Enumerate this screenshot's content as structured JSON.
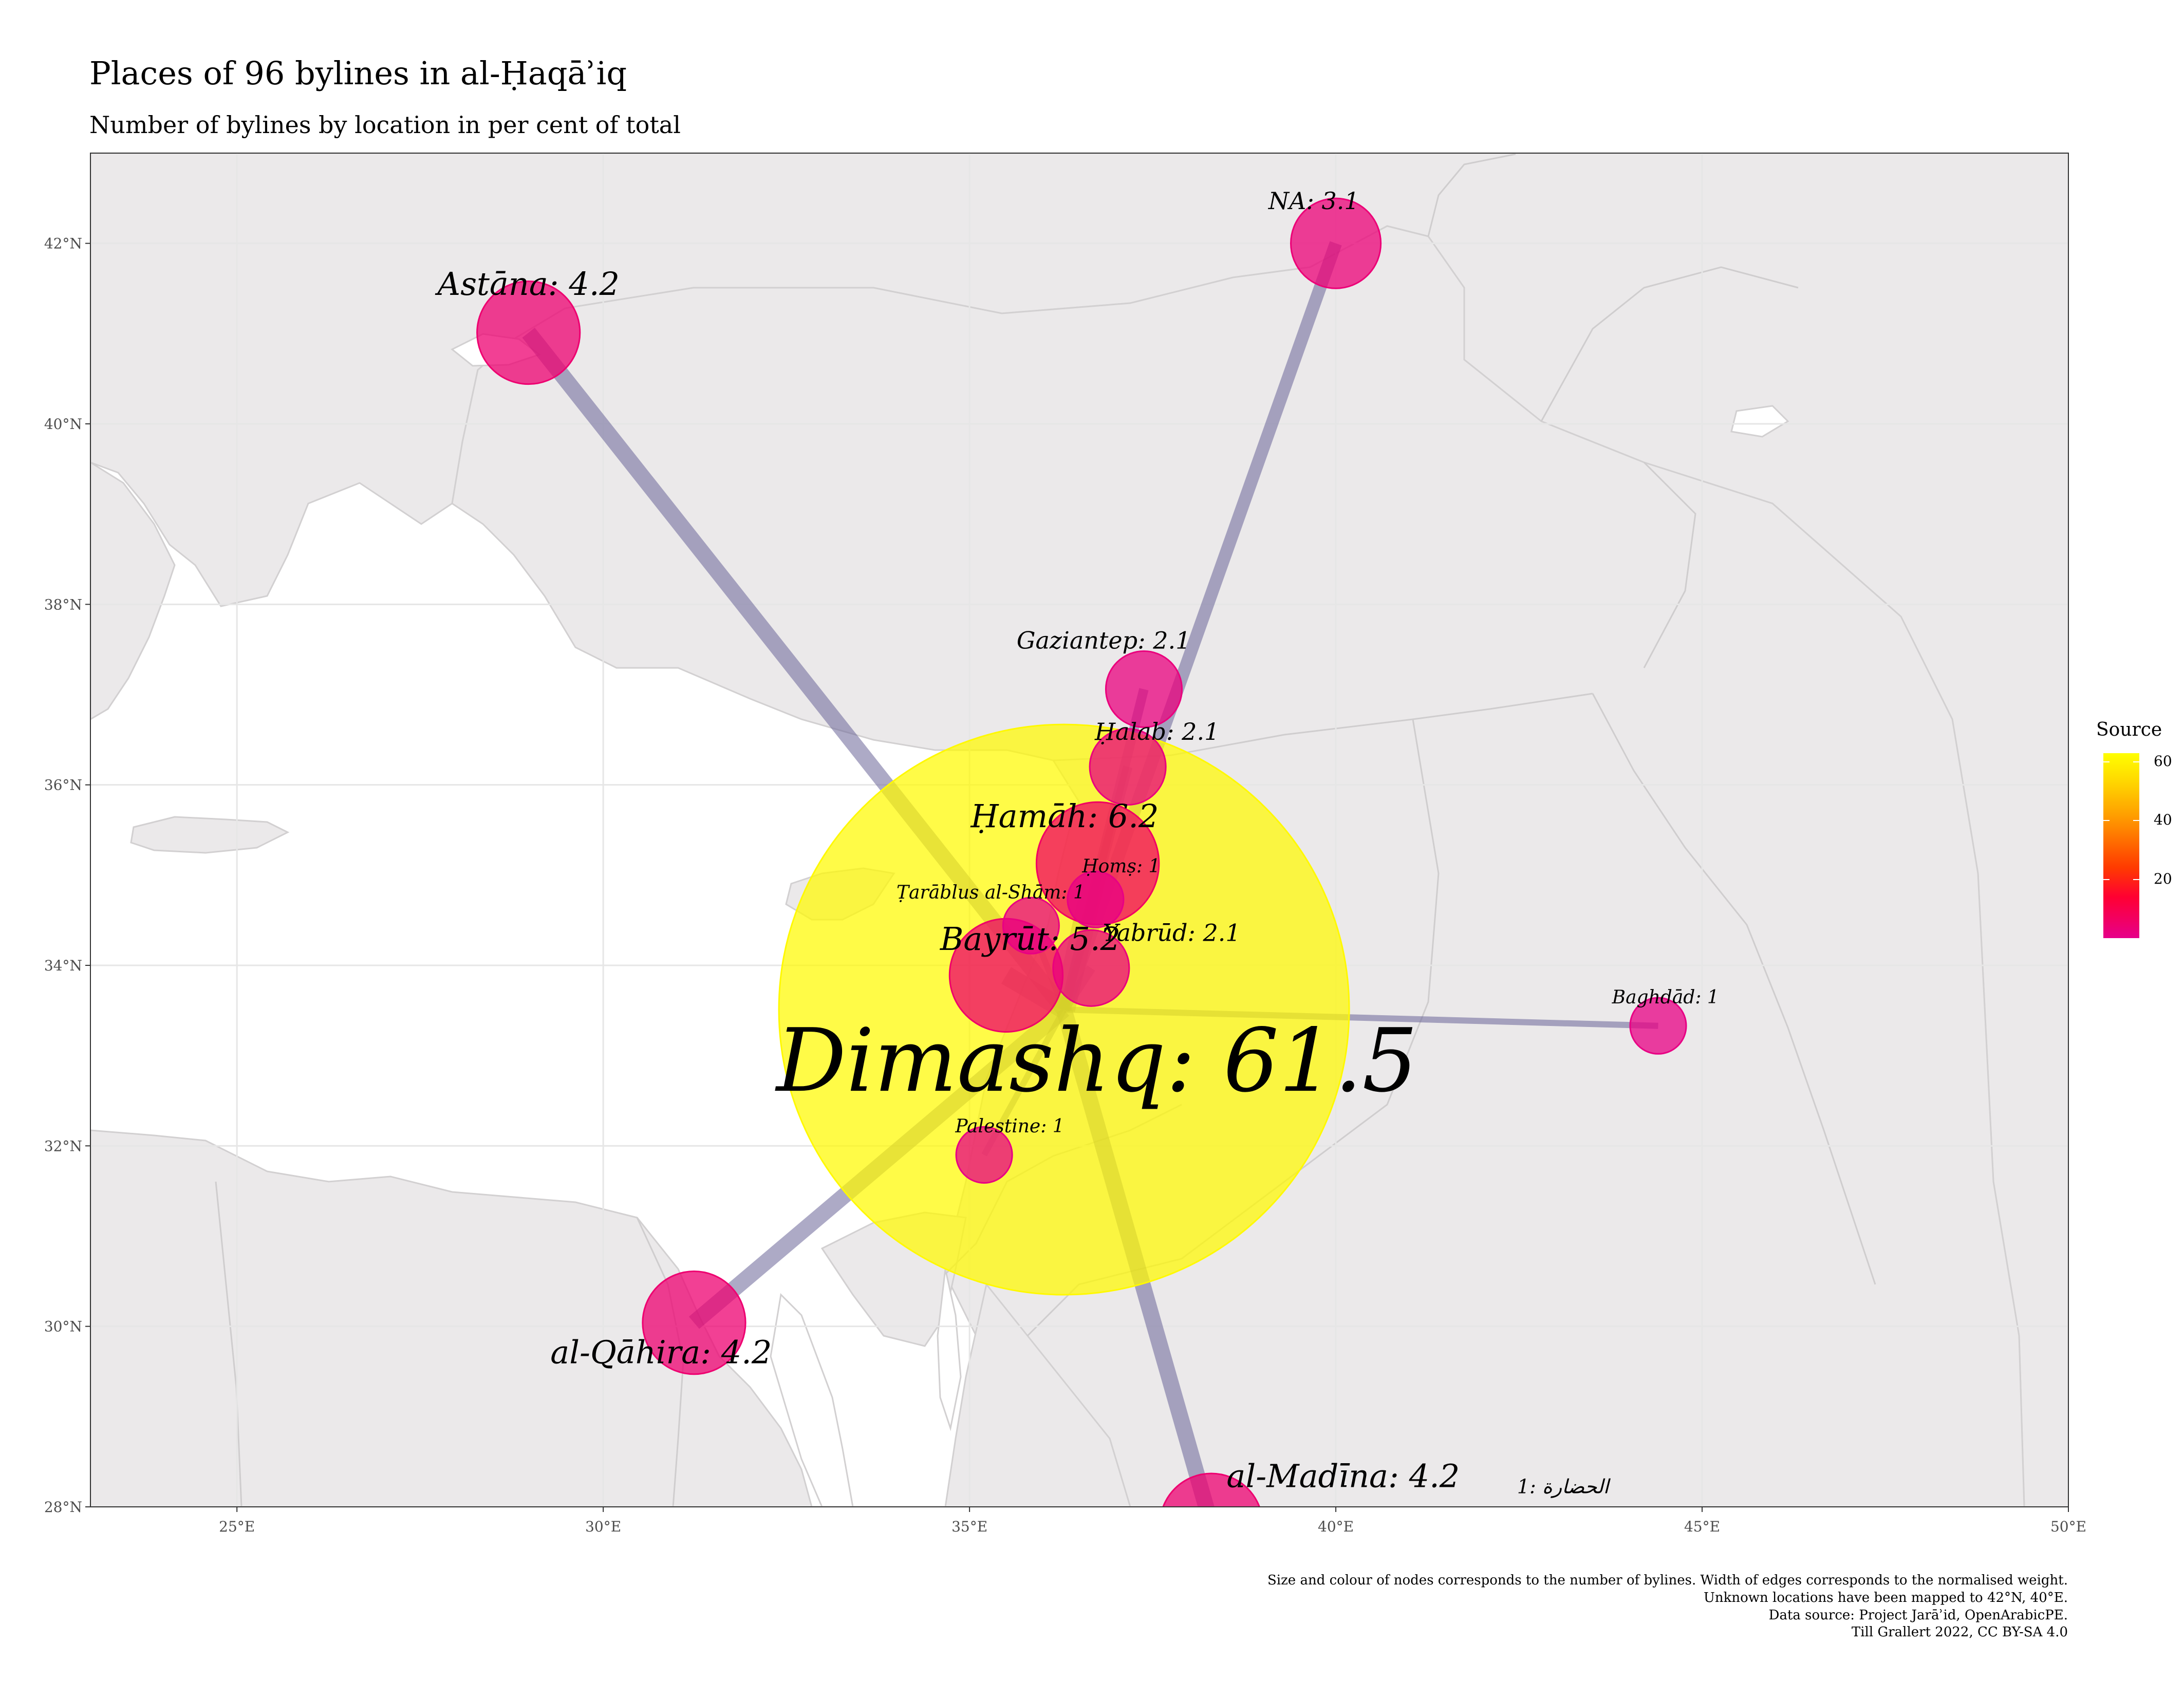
{
  "title": "Places of 96 bylines in al-Ḥaqāʾiq",
  "subtitle": "Number of bylines by location in per cent of total",
  "axes": {
    "x_ticks": [
      {
        "value": 25,
        "label": "25°E"
      },
      {
        "value": 30,
        "label": "30°E"
      },
      {
        "value": 35,
        "label": "35°E"
      },
      {
        "value": 40,
        "label": "40°E"
      },
      {
        "value": 45,
        "label": "45°E"
      },
      {
        "value": 50,
        "label": "50°E"
      }
    ],
    "y_ticks": [
      {
        "value": 28,
        "label": "28°N"
      },
      {
        "value": 30,
        "label": "30°N"
      },
      {
        "value": 32,
        "label": "32°N"
      },
      {
        "value": 34,
        "label": "34°N"
      },
      {
        "value": 36,
        "label": "36°N"
      },
      {
        "value": 38,
        "label": "38°N"
      },
      {
        "value": 40,
        "label": "40°N"
      },
      {
        "value": 42,
        "label": "42°N"
      }
    ],
    "lon_range": [
      23,
      50
    ],
    "lat_range": [
      28,
      43
    ]
  },
  "chart_data": {
    "type": "scatter",
    "hub": "Dimashq",
    "nodes": [
      {
        "name": "Dimashq",
        "lon": 36.29,
        "lat": 33.51,
        "value": 61.5,
        "label": "Dimashq: 61.5"
      },
      {
        "name": "Astāna",
        "lon": 28.98,
        "lat": 41.01,
        "value": 4.2,
        "label": "Astāna: 4.2"
      },
      {
        "name": "NA",
        "lon": 40.0,
        "lat": 42.0,
        "value": 3.1,
        "label": "NA: 3.1"
      },
      {
        "name": "Gaziantep",
        "lon": 37.38,
        "lat": 37.06,
        "value": 2.1,
        "label": "Gaziantep: 2.1"
      },
      {
        "name": "Ḥalab",
        "lon": 37.16,
        "lat": 36.2,
        "value": 2.1,
        "label": "Ḥalab: 2.1"
      },
      {
        "name": "Ḥamāh",
        "lon": 36.75,
        "lat": 35.13,
        "value": 6.2,
        "label": "Ḥamāh: 6.2"
      },
      {
        "name": "Ḥomṣ",
        "lon": 36.72,
        "lat": 34.73,
        "value": 1,
        "label": "Ḥomṣ: 1"
      },
      {
        "name": "Ṭarāblus al-Shām",
        "lon": 35.84,
        "lat": 34.44,
        "value": 1,
        "label": "Ṭarāblus al-Shām: 1"
      },
      {
        "name": "Bayrūt",
        "lon": 35.5,
        "lat": 33.89,
        "value": 5.2,
        "label": "Bayrūt: 5.2"
      },
      {
        "name": "Yabrūd",
        "lon": 36.66,
        "lat": 33.97,
        "value": 2.1,
        "label": "Yabrūd: 2.1"
      },
      {
        "name": "Baghdād",
        "lon": 44.4,
        "lat": 33.33,
        "value": 1,
        "label": "Baghdād: 1"
      },
      {
        "name": "Palestine",
        "lon": 35.2,
        "lat": 31.9,
        "value": 1,
        "label": "Palestine: 1"
      },
      {
        "name": "al-Qāhira",
        "lon": 31.24,
        "lat": 30.04,
        "value": 4.2,
        "label": "al-Qāhira: 4.2"
      },
      {
        "name": "al-Madīna",
        "lon": 38.3,
        "lat": 27.8,
        "value": 4.2,
        "label": "al-Madīna: 4.2"
      }
    ],
    "extra_labels": [
      {
        "text": "الحضارة :1",
        "lon": 43.1,
        "lat": 28.15
      }
    ],
    "edges": [
      {
        "from": "Dimashq",
        "to": "Astāna",
        "weight": 4.2
      },
      {
        "from": "Dimashq",
        "to": "NA",
        "weight": 3.1
      },
      {
        "from": "Dimashq",
        "to": "Gaziantep",
        "weight": 2.1
      },
      {
        "from": "Dimashq",
        "to": "Ḥalab",
        "weight": 2.1
      },
      {
        "from": "Dimashq",
        "to": "Ḥamāh",
        "weight": 6.2
      },
      {
        "from": "Dimashq",
        "to": "Ḥomṣ",
        "weight": 1
      },
      {
        "from": "Dimashq",
        "to": "Ṭarāblus al-Shām",
        "weight": 1
      },
      {
        "from": "Dimashq",
        "to": "Bayrūt",
        "weight": 5.2
      },
      {
        "from": "Dimashq",
        "to": "Yabrūd",
        "weight": 2.1
      },
      {
        "from": "Dimashq",
        "to": "Baghdād",
        "weight": 1
      },
      {
        "from": "Dimashq",
        "to": "Palestine",
        "weight": 1
      },
      {
        "from": "Dimashq",
        "to": "al-Qāhira",
        "weight": 4.2
      },
      {
        "from": "Dimashq",
        "to": "al-Madīna",
        "weight": 4.2
      }
    ],
    "legend": {
      "title": "Source",
      "ticks": [
        {
          "value": 60,
          "label": "60"
        },
        {
          "value": 40,
          "label": "40"
        },
        {
          "value": 20,
          "label": "20"
        }
      ],
      "range": [
        0,
        63
      ],
      "placement": "right"
    },
    "colors": {
      "land": "#ebe9ea",
      "water": "#ffffff",
      "grid": "#e6e6e6",
      "edge": "#6a6498",
      "node_low": "#e6008a",
      "node_high": "#ffff00"
    }
  },
  "caption": [
    "Size and colour of nodes corresponds to the number of bylines. Width of edges corresponds to the normalised weight.",
    "Unknown locations have been mapped to 42°N, 40°E.",
    "Data source: Project Jarāʾid, OpenArabicPE.",
    "Till Grallert 2022, CC BY-SA 4.0"
  ]
}
